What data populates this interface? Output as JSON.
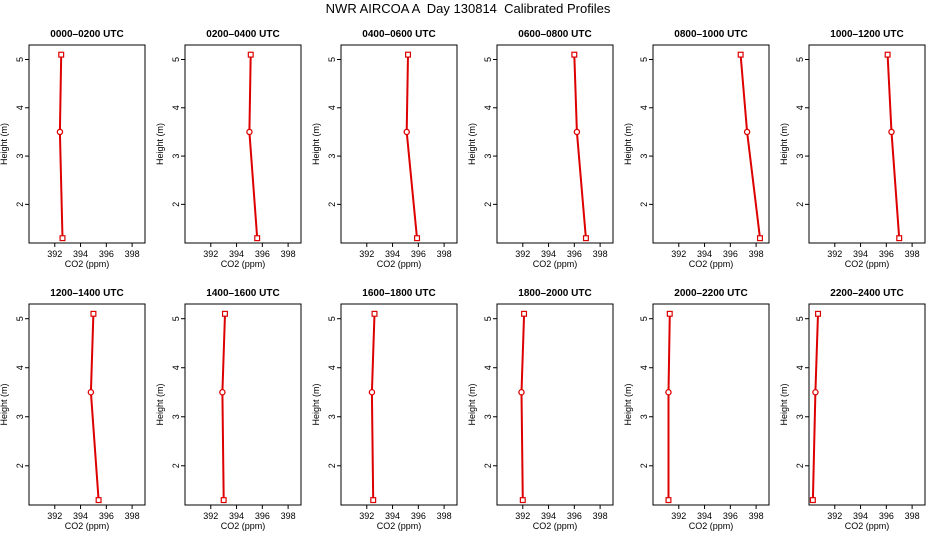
{
  "title": "NWR AIRCOA A  Day 130814  Calibrated Profiles",
  "chart_data": {
    "type": "line",
    "xlabel": "CO2 (ppm)",
    "ylabel": "Height (m)",
    "xlim": [
      390,
      399
    ],
    "ylim": [
      1.2,
      5.3
    ],
    "x_ticks": [
      "392",
      "394",
      "396",
      "398"
    ],
    "y_ticks": [
      "2",
      "3",
      "4",
      "5"
    ],
    "color": "#dd0000",
    "heights": [
      5.1,
      3.5,
      1.3
    ],
    "panels": [
      {
        "title": "0000–0200 UTC",
        "co2": [
          392.5,
          392.4,
          392.6
        ]
      },
      {
        "title": "0200–0400 UTC",
        "co2": [
          395.1,
          395.0,
          395.6
        ]
      },
      {
        "title": "0400–0600 UTC",
        "co2": [
          395.2,
          395.1,
          395.9
        ]
      },
      {
        "title": "0600–0800 UTC",
        "co2": [
          396.0,
          396.2,
          396.9
        ]
      },
      {
        "title": "0800–1000 UTC",
        "co2": [
          396.8,
          397.3,
          398.3
        ]
      },
      {
        "title": "1000–1200 UTC",
        "co2": [
          396.1,
          396.4,
          397.0
        ]
      },
      {
        "title": "1200–1400 UTC",
        "co2": [
          395.0,
          394.8,
          395.4
        ]
      },
      {
        "title": "1400–1600 UTC",
        "co2": [
          393.1,
          392.9,
          393.0
        ]
      },
      {
        "title": "1600–1800 UTC",
        "co2": [
          392.6,
          392.4,
          392.5
        ]
      },
      {
        "title": "1800–2000 UTC",
        "co2": [
          392.1,
          391.9,
          392.0
        ]
      },
      {
        "title": "2000–2200 UTC",
        "co2": [
          391.3,
          391.2,
          391.2
        ]
      },
      {
        "title": "2200–2400 UTC",
        "co2": [
          390.7,
          390.5,
          390.3
        ]
      }
    ]
  }
}
